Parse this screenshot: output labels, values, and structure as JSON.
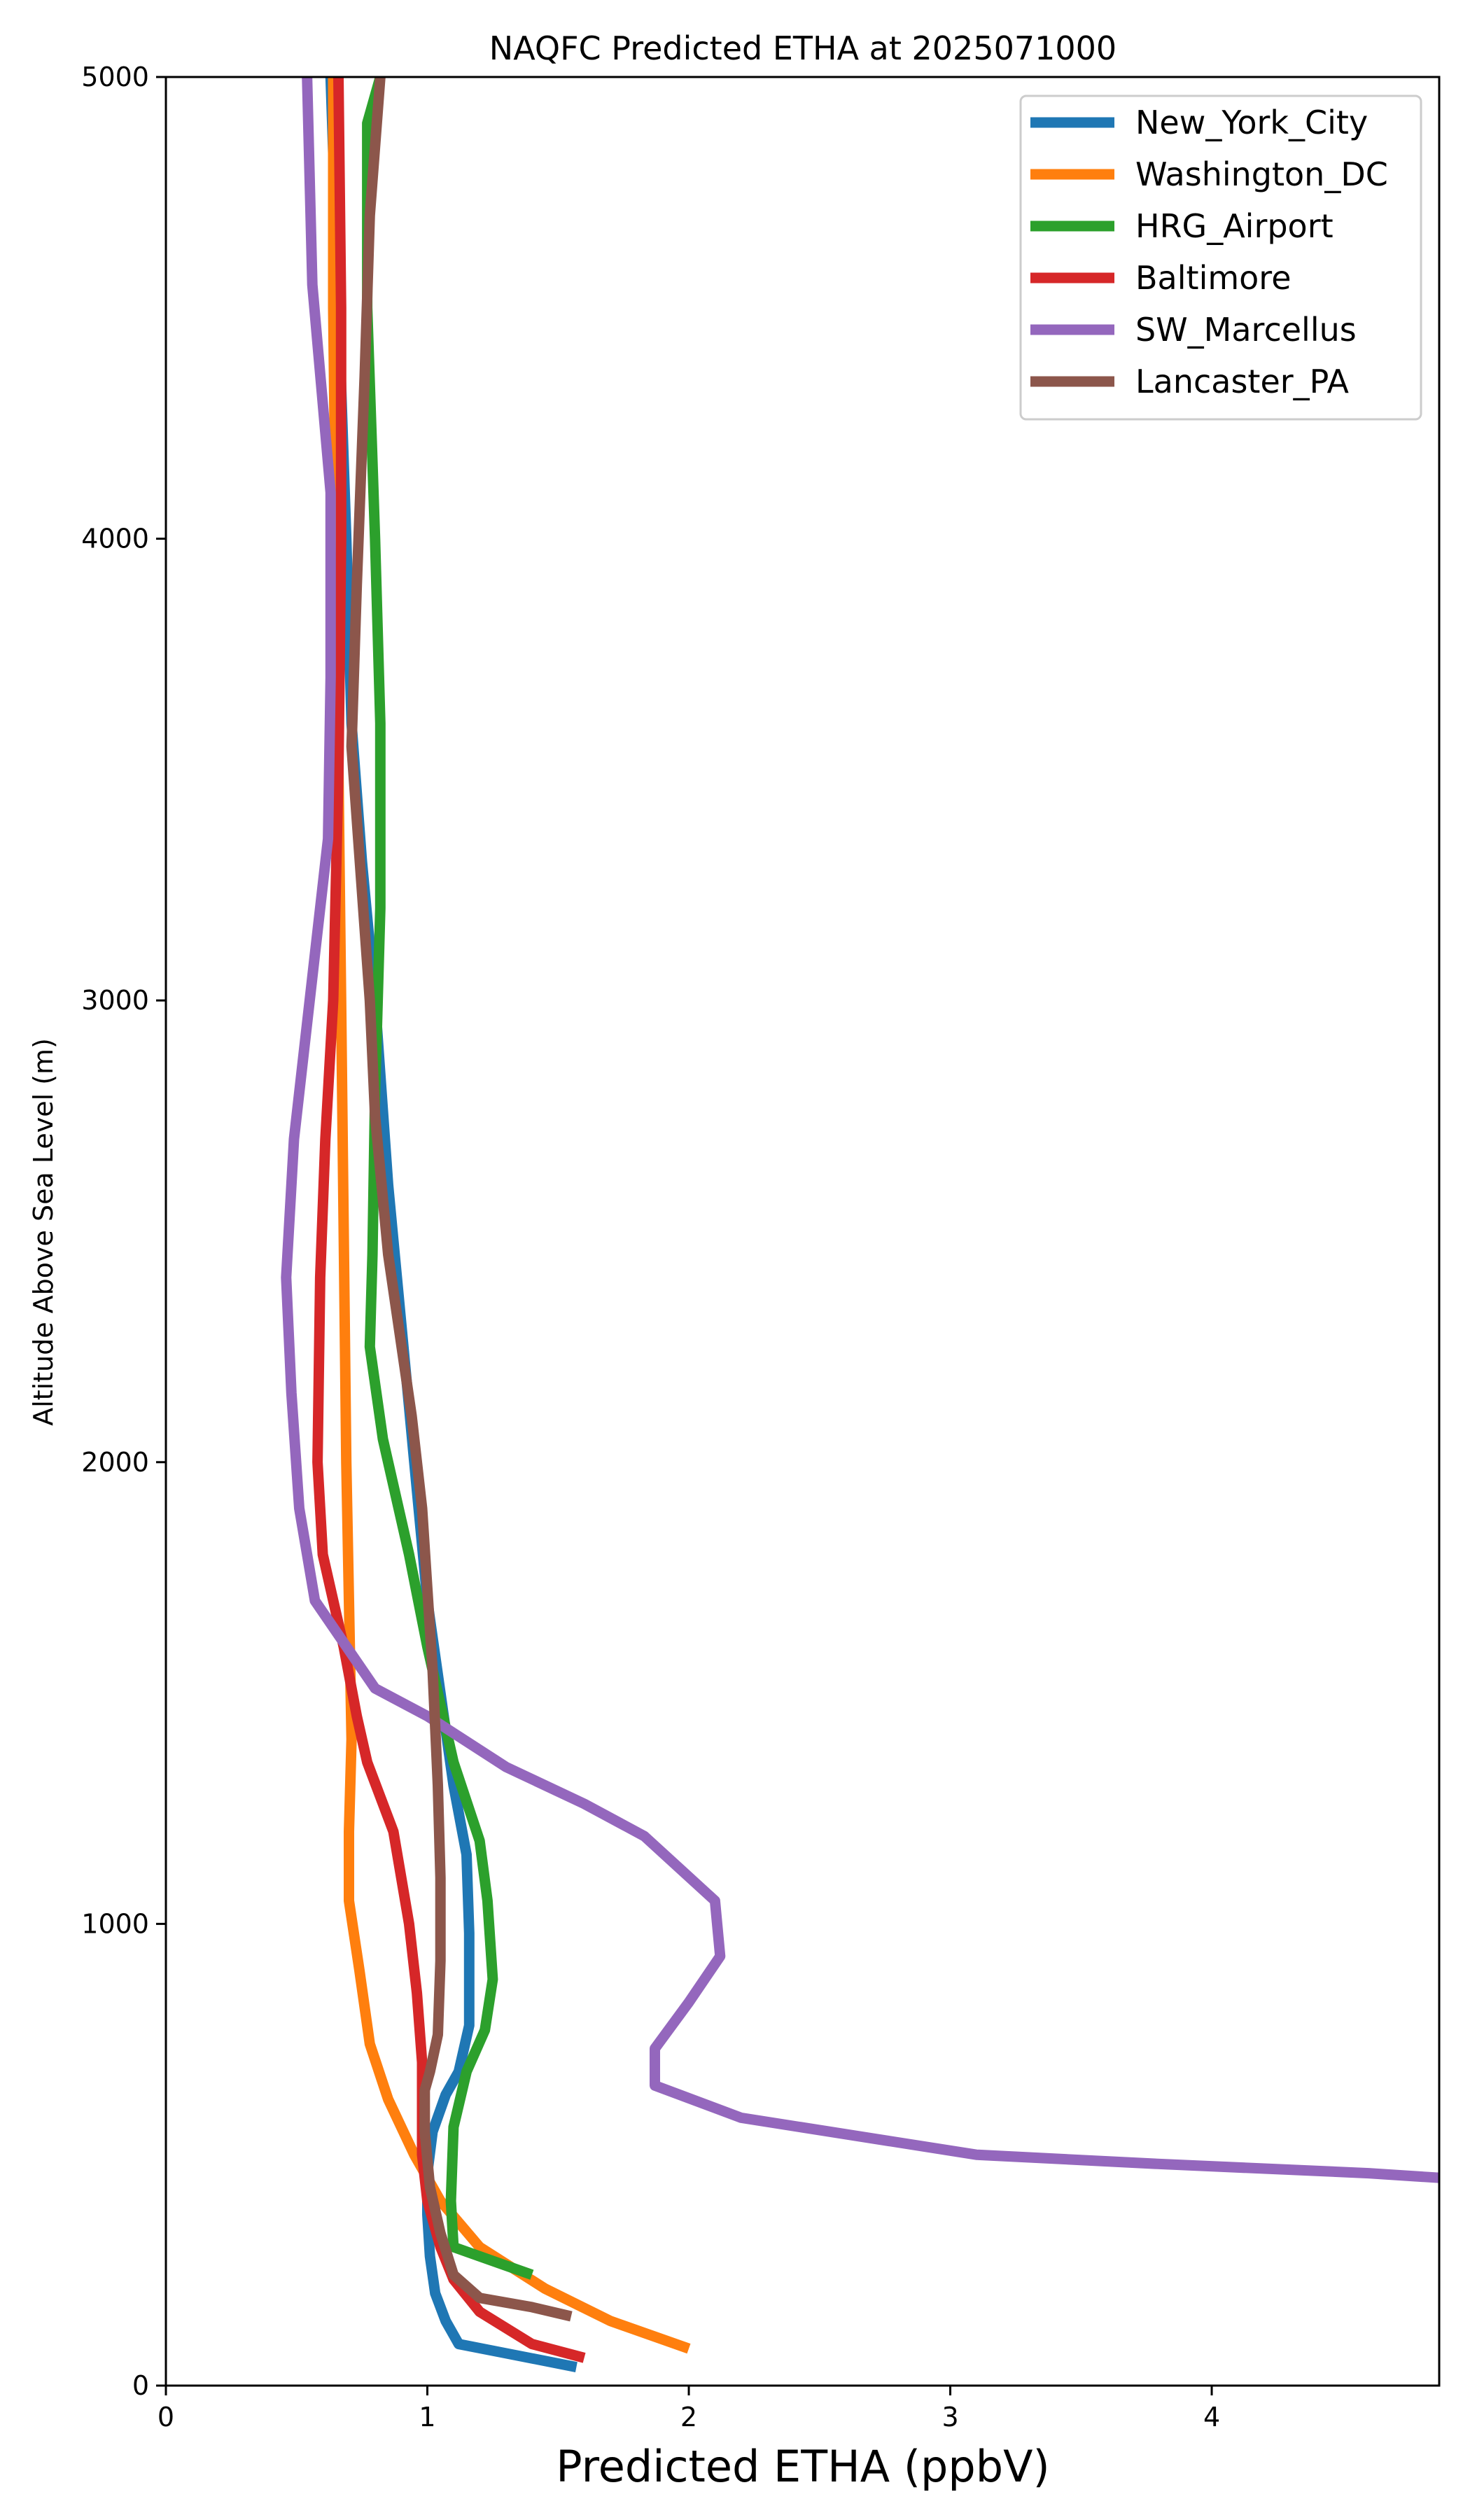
{
  "chart_data": {
    "type": "line",
    "title": "NAQFC Predicted ETHA at 2025071000",
    "xlabel": "Predicted ETHA (ppbV)",
    "ylabel": "Altitude Above Sea Level (m)",
    "xlim": [
      0,
      4.87
    ],
    "ylim": [
      0,
      5000
    ],
    "x_ticks": [
      "0",
      "1",
      "2",
      "3",
      "4"
    ],
    "y_ticks": [
      "0",
      "1000",
      "2000",
      "3000",
      "4000",
      "5000"
    ],
    "grid": false,
    "legend_position": "top-right",
    "series": [
      {
        "name": "New_York_City",
        "color": "#1f77b4",
        "points": [
          [
            1.57,
            40
          ],
          [
            1.3,
            70
          ],
          [
            1.12,
            90
          ],
          [
            1.07,
            140
          ],
          [
            1.03,
            200
          ],
          [
            1.01,
            280
          ],
          [
            1.0,
            370
          ],
          [
            1.0,
            460
          ],
          [
            1.02,
            550
          ],
          [
            1.07,
            630
          ],
          [
            1.12,
            680
          ],
          [
            1.16,
            780
          ],
          [
            1.16,
            880
          ],
          [
            1.16,
            980
          ],
          [
            1.15,
            1150
          ],
          [
            1.1,
            1300
          ],
          [
            1.05,
            1500
          ],
          [
            1.0,
            1700
          ],
          [
            0.95,
            2000
          ],
          [
            0.9,
            2300
          ],
          [
            0.85,
            2600
          ],
          [
            0.8,
            3000
          ],
          [
            0.75,
            3300
          ],
          [
            0.71,
            3600
          ],
          [
            0.69,
            4000
          ],
          [
            0.66,
            4500
          ],
          [
            0.63,
            5000
          ]
        ]
      },
      {
        "name": "Washington_DC",
        "color": "#ff7f0e",
        "points": [
          [
            2.0,
            80
          ],
          [
            1.7,
            140
          ],
          [
            1.45,
            210
          ],
          [
            1.2,
            300
          ],
          [
            1.05,
            400
          ],
          [
            0.95,
            500
          ],
          [
            0.85,
            620
          ],
          [
            0.78,
            740
          ],
          [
            0.74,
            900
          ],
          [
            0.7,
            1050
          ],
          [
            0.7,
            1200
          ],
          [
            0.71,
            1400
          ],
          [
            0.7,
            1700
          ],
          [
            0.69,
            2000
          ],
          [
            0.68,
            2500
          ],
          [
            0.67,
            3000
          ],
          [
            0.66,
            3500
          ],
          [
            0.65,
            4000
          ],
          [
            0.64,
            4500
          ],
          [
            0.64,
            5000
          ]
        ]
      },
      {
        "name": "HRG_Airport",
        "color": "#2ca02c",
        "points": [
          [
            1.4,
            240
          ],
          [
            1.2,
            280
          ],
          [
            1.1,
            300
          ],
          [
            1.09,
            400
          ],
          [
            1.1,
            560
          ],
          [
            1.15,
            680
          ],
          [
            1.22,
            770
          ],
          [
            1.25,
            880
          ],
          [
            1.23,
            1050
          ],
          [
            1.2,
            1180
          ],
          [
            1.1,
            1350
          ],
          [
            1.0,
            1600
          ],
          [
            0.93,
            1800
          ],
          [
            0.83,
            2050
          ],
          [
            0.78,
            2250
          ],
          [
            0.79,
            2450
          ],
          [
            0.8,
            2800
          ],
          [
            0.82,
            3200
          ],
          [
            0.82,
            3600
          ],
          [
            0.8,
            4000
          ],
          [
            0.77,
            4500
          ],
          [
            0.77,
            4900
          ],
          [
            0.82,
            5000
          ]
        ]
      },
      {
        "name": "Baltimore",
        "color": "#d62728",
        "points": [
          [
            1.6,
            60
          ],
          [
            1.4,
            90
          ],
          [
            1.2,
            160
          ],
          [
            1.1,
            230
          ],
          [
            1.05,
            300
          ],
          [
            1.0,
            400
          ],
          [
            0.98,
            500
          ],
          [
            0.98,
            600
          ],
          [
            0.98,
            700
          ],
          [
            0.96,
            850
          ],
          [
            0.93,
            1000
          ],
          [
            0.87,
            1200
          ],
          [
            0.77,
            1350
          ],
          [
            0.73,
            1450
          ],
          [
            0.68,
            1600
          ],
          [
            0.6,
            1800
          ],
          [
            0.58,
            2000
          ],
          [
            0.59,
            2400
          ],
          [
            0.61,
            2700
          ],
          [
            0.64,
            3000
          ],
          [
            0.66,
            3500
          ],
          [
            0.67,
            4000
          ],
          [
            0.67,
            4500
          ],
          [
            0.66,
            5000
          ]
        ]
      },
      {
        "name": "SW_Marcellus",
        "color": "#9467bd",
        "points": [
          [
            4.87,
            450
          ],
          [
            4.6,
            460
          ],
          [
            3.8,
            480
          ],
          [
            3.1,
            500
          ],
          [
            2.2,
            580
          ],
          [
            1.87,
            650
          ],
          [
            1.87,
            700
          ],
          [
            1.87,
            730
          ],
          [
            2.0,
            830
          ],
          [
            2.12,
            930
          ],
          [
            2.1,
            1050
          ],
          [
            1.83,
            1190
          ],
          [
            1.6,
            1260
          ],
          [
            1.3,
            1340
          ],
          [
            1.0,
            1450
          ],
          [
            0.8,
            1510
          ],
          [
            0.57,
            1700
          ],
          [
            0.51,
            1900
          ],
          [
            0.48,
            2150
          ],
          [
            0.46,
            2400
          ],
          [
            0.49,
            2700
          ],
          [
            0.55,
            3000
          ],
          [
            0.62,
            3350
          ],
          [
            0.63,
            3700
          ],
          [
            0.63,
            4100
          ],
          [
            0.56,
            4550
          ],
          [
            0.54,
            5000
          ]
        ]
      },
      {
        "name": "Lancaster_PA",
        "color": "#8c564b",
        "points": [
          [
            1.55,
            150
          ],
          [
            1.4,
            170
          ],
          [
            1.2,
            190
          ],
          [
            1.1,
            240
          ],
          [
            1.05,
            330
          ],
          [
            1.01,
            430
          ],
          [
            0.99,
            550
          ],
          [
            0.99,
            640
          ],
          [
            1.01,
            680
          ],
          [
            1.04,
            760
          ],
          [
            1.05,
            920
          ],
          [
            1.05,
            1100
          ],
          [
            1.04,
            1300
          ],
          [
            1.02,
            1550
          ],
          [
            0.98,
            1900
          ],
          [
            0.94,
            2100
          ],
          [
            0.85,
            2450
          ],
          [
            0.8,
            2750
          ],
          [
            0.78,
            3000
          ],
          [
            0.71,
            3550
          ],
          [
            0.73,
            3900
          ],
          [
            0.76,
            4350
          ],
          [
            0.78,
            4700
          ],
          [
            0.82,
            5000
          ]
        ]
      }
    ]
  }
}
